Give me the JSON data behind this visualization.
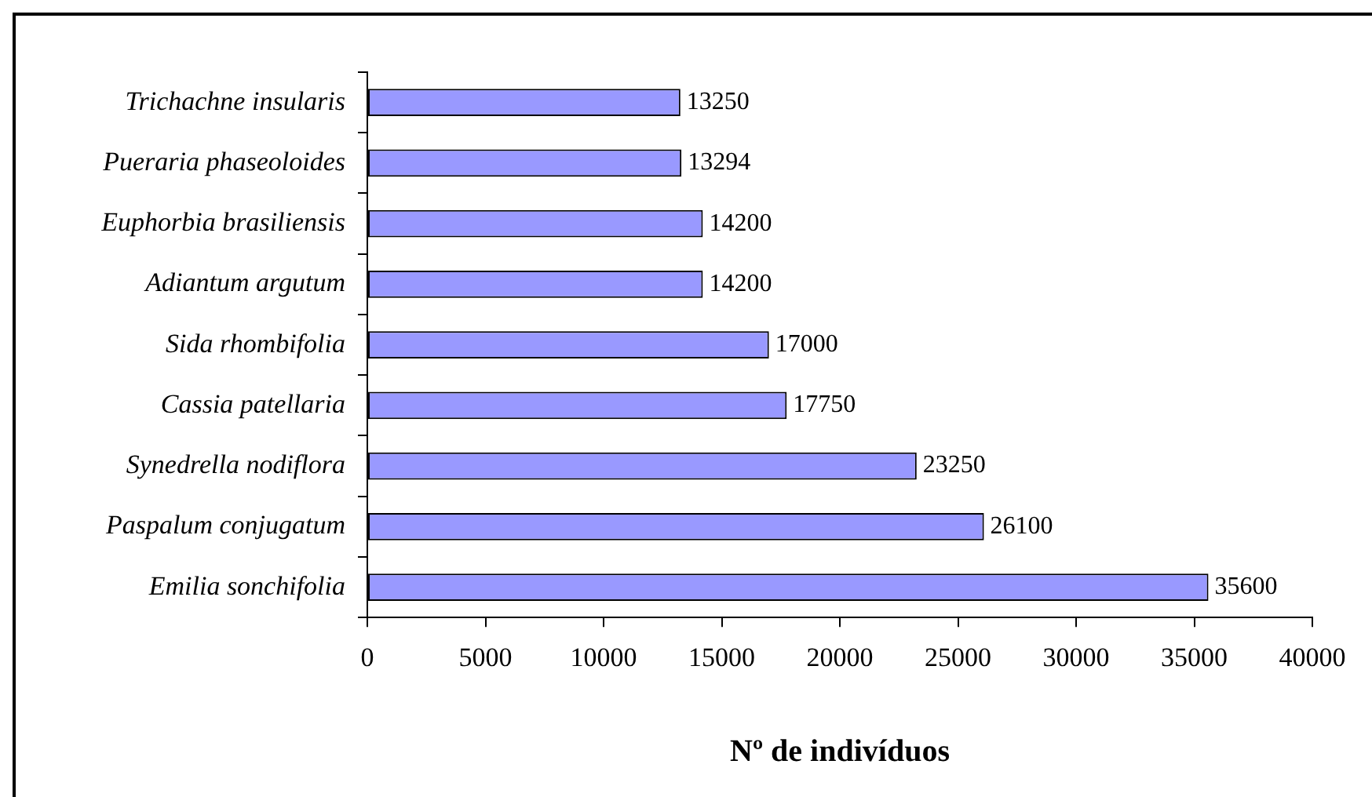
{
  "chart_data": {
    "type": "bar",
    "orientation": "horizontal",
    "xlabel": "Nº de indivíduos",
    "categories": [
      "Trichachne insularis",
      "Pueraria phaseoloides",
      "Euphorbia brasiliensis",
      "Adiantum argutum",
      "Sida rhombifolia",
      "Cassia patellaria",
      "Synedrella nodiflora",
      "Paspalum conjugatum",
      "Emilia sonchifolia"
    ],
    "values": [
      13250,
      13294,
      14200,
      14200,
      17000,
      17750,
      23250,
      26100,
      35600
    ],
    "color": "#9999ff",
    "xlim": [
      0,
      40000
    ],
    "xticks": [
      0,
      5000,
      10000,
      15000,
      20000,
      25000,
      30000,
      35000,
      40000
    ],
    "data_labels": true,
    "grid": false,
    "legend": false
  }
}
